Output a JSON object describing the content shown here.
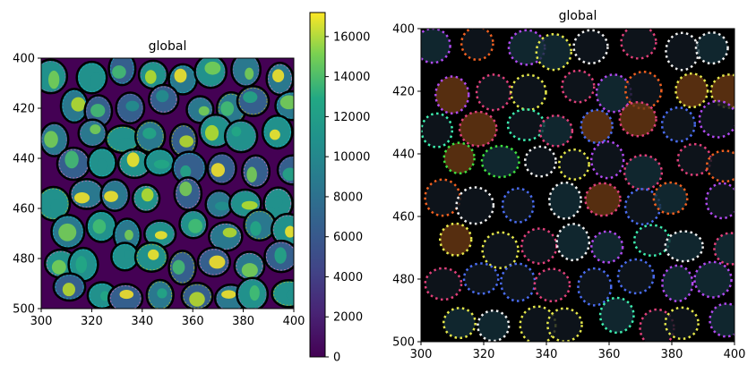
{
  "chart_data": [
    {
      "type": "heatmap",
      "title": "global",
      "xlabel": "",
      "ylabel": "",
      "x_ticks": [
        300,
        320,
        340,
        360,
        380,
        400
      ],
      "y_ticks": [
        400,
        420,
        440,
        460,
        480,
        500
      ],
      "xlim": [
        300,
        400
      ],
      "ylim": [
        500,
        400
      ],
      "y_inverted": true,
      "colormap": "viridis",
      "colorbar": {
        "ticks": [
          0,
          2000,
          4000,
          6000,
          8000,
          10000,
          12000,
          14000,
          16000
        ],
        "range": [
          0,
          17200
        ]
      },
      "description_values": "cell-segmentation intensity image; bright yellow cells up to ~17000, background ~0"
    },
    {
      "type": "heatmap",
      "title": "global",
      "xlabel": "",
      "ylabel": "",
      "x_ticks": [
        300,
        320,
        340,
        360,
        380,
        400
      ],
      "y_ticks": [
        400,
        420,
        440,
        460,
        480,
        500
      ],
      "xlim": [
        300,
        400
      ],
      "ylim": [
        500,
        400
      ],
      "y_inverted": true,
      "colormap": "rgb-composite-dark"
    }
  ],
  "colors": {
    "viridis_low": "#440154",
    "viridis_mid": "#21918c",
    "viridis_high": "#fde725",
    "rgb_background": "#000000"
  }
}
